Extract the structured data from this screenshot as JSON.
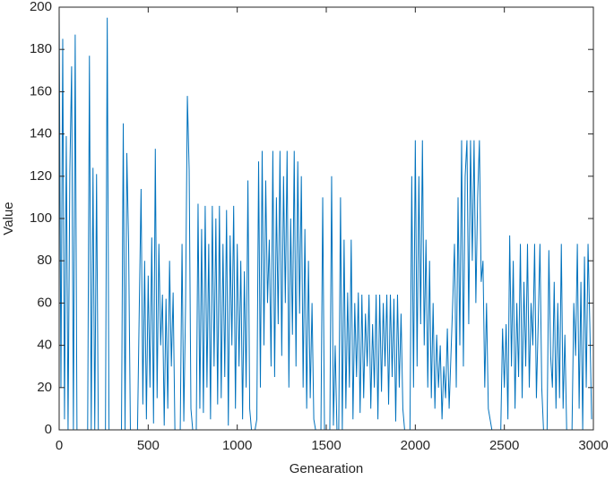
{
  "chart_data": {
    "type": "line",
    "xlabel": "Genearation",
    "ylabel": "Value",
    "color": "#0072bd",
    "xlim": [
      0,
      3000
    ],
    "xticks": [
      0,
      500,
      1000,
      1500,
      2000,
      2500,
      3000
    ],
    "ylim": [
      0,
      200
    ],
    "yticks": [
      0,
      20,
      40,
      60,
      80,
      100,
      120,
      140,
      160,
      180,
      200
    ],
    "x": [
      0,
      10,
      20,
      30,
      40,
      50,
      60,
      70,
      80,
      90,
      100,
      110,
      120,
      130,
      140,
      150,
      160,
      170,
      180,
      190,
      200,
      210,
      220,
      230,
      240,
      250,
      260,
      270,
      280,
      290,
      300,
      310,
      320,
      330,
      340,
      350,
      360,
      370,
      380,
      390,
      400,
      410,
      420,
      430,
      440,
      450,
      460,
      470,
      480,
      490,
      500,
      510,
      520,
      530,
      540,
      550,
      560,
      570,
      580,
      590,
      600,
      610,
      620,
      630,
      640,
      650,
      660,
      670,
      680,
      690,
      700,
      710,
      720,
      730,
      740,
      750,
      760,
      770,
      780,
      790,
      800,
      810,
      820,
      830,
      840,
      850,
      860,
      870,
      880,
      890,
      900,
      910,
      920,
      930,
      940,
      950,
      960,
      970,
      980,
      990,
      1000,
      1010,
      1020,
      1030,
      1040,
      1050,
      1060,
      1070,
      1080,
      1090,
      1100,
      1110,
      1120,
      1130,
      1140,
      1150,
      1160,
      1170,
      1180,
      1190,
      1200,
      1210,
      1220,
      1230,
      1240,
      1250,
      1260,
      1270,
      1280,
      1290,
      1300,
      1310,
      1320,
      1330,
      1340,
      1350,
      1360,
      1370,
      1380,
      1390,
      1400,
      1410,
      1420,
      1430,
      1440,
      1450,
      1460,
      1470,
      1480,
      1490,
      1500,
      1510,
      1520,
      1530,
      1540,
      1550,
      1560,
      1570,
      1580,
      1590,
      1600,
      1610,
      1620,
      1630,
      1640,
      1650,
      1660,
      1670,
      1680,
      1690,
      1700,
      1710,
      1720,
      1730,
      1740,
      1750,
      1760,
      1770,
      1780,
      1790,
      1800,
      1810,
      1820,
      1830,
      1840,
      1850,
      1860,
      1870,
      1880,
      1890,
      1900,
      1910,
      1920,
      1930,
      1940,
      1950,
      1960,
      1970,
      1980,
      1990,
      2000,
      2010,
      2020,
      2030,
      2040,
      2050,
      2060,
      2070,
      2080,
      2090,
      2100,
      2110,
      2120,
      2130,
      2140,
      2150,
      2160,
      2170,
      2180,
      2190,
      2200,
      2210,
      2220,
      2230,
      2240,
      2250,
      2260,
      2270,
      2280,
      2290,
      2300,
      2310,
      2320,
      2330,
      2340,
      2350,
      2360,
      2370,
      2380,
      2390,
      2400,
      2410,
      2420,
      2430,
      2440,
      2450,
      2460,
      2470,
      2480,
      2490,
      2500,
      2510,
      2520,
      2530,
      2540,
      2550,
      2560,
      2570,
      2580,
      2590,
      2600,
      2610,
      2620,
      2630,
      2640,
      2650,
      2660,
      2670,
      2680,
      2690,
      2700,
      2710,
      2720,
      2730,
      2740,
      2750,
      2760,
      2770,
      2780,
      2790,
      2800,
      2810,
      2820,
      2830,
      2840,
      2850,
      2860,
      2870,
      2880,
      2890,
      2900,
      2910,
      2920,
      2930,
      2940,
      2950,
      2960,
      2970,
      2980,
      2990
    ],
    "values": [
      198,
      20,
      185,
      5,
      139,
      0,
      122,
      172,
      0,
      187,
      0,
      0,
      0,
      0,
      0,
      0,
      0,
      177,
      0,
      124,
      0,
      121,
      0,
      0,
      0,
      0,
      0,
      195,
      0,
      0,
      0,
      0,
      0,
      0,
      0,
      0,
      145,
      0,
      131,
      88,
      0,
      0,
      0,
      0,
      0,
      58,
      114,
      12,
      80,
      5,
      73,
      20,
      91,
      3,
      133,
      15,
      88,
      40,
      64,
      2,
      62,
      10,
      80,
      30,
      65,
      0,
      0,
      0,
      0,
      88,
      4,
      60,
      158,
      123,
      10,
      0,
      0,
      0,
      107,
      10,
      95,
      8,
      106,
      20,
      88,
      5,
      106,
      30,
      100,
      12,
      106,
      15,
      88,
      25,
      104,
      2,
      92,
      40,
      106,
      10,
      88,
      30,
      80,
      5,
      75,
      20,
      118,
      10,
      0,
      0,
      0,
      5,
      127,
      20,
      132,
      40,
      118,
      60,
      90,
      30,
      132,
      25,
      110,
      50,
      132,
      35,
      120,
      60,
      132,
      20,
      100,
      45,
      132,
      30,
      127,
      55,
      120,
      20,
      95,
      10,
      80,
      15,
      60,
      5,
      0,
      0,
      0,
      0,
      110,
      0,
      0,
      0,
      0,
      120,
      2,
      40,
      0,
      0,
      110,
      0,
      90,
      10,
      65,
      20,
      90,
      5,
      60,
      25,
      65,
      8,
      64,
      15,
      55,
      30,
      64,
      10,
      50,
      20,
      64,
      5,
      64,
      18,
      60,
      30,
      64,
      12,
      64,
      25,
      62,
      4,
      64,
      20,
      55,
      10,
      0,
      0,
      0,
      0,
      120,
      20,
      137,
      30,
      120,
      50,
      137,
      40,
      90,
      20,
      80,
      15,
      60,
      10,
      45,
      20,
      40,
      5,
      30,
      15,
      48,
      10,
      35,
      60,
      88,
      20,
      110,
      40,
      137,
      30,
      120,
      137,
      50,
      137,
      80,
      137,
      60,
      110,
      137,
      70,
      80,
      20,
      60,
      10,
      5,
      0,
      0,
      0,
      0,
      0,
      0,
      48,
      20,
      50,
      5,
      92,
      30,
      80,
      10,
      60,
      25,
      88,
      15,
      70,
      30,
      88,
      20,
      60,
      40,
      88,
      15,
      50,
      88,
      20,
      0,
      0,
      0,
      85,
      35,
      20,
      70,
      10,
      60,
      15,
      88,
      10,
      45,
      0,
      0,
      0,
      0,
      60,
      35,
      88,
      10,
      70,
      0,
      82,
      20,
      88,
      50,
      5
    ]
  }
}
